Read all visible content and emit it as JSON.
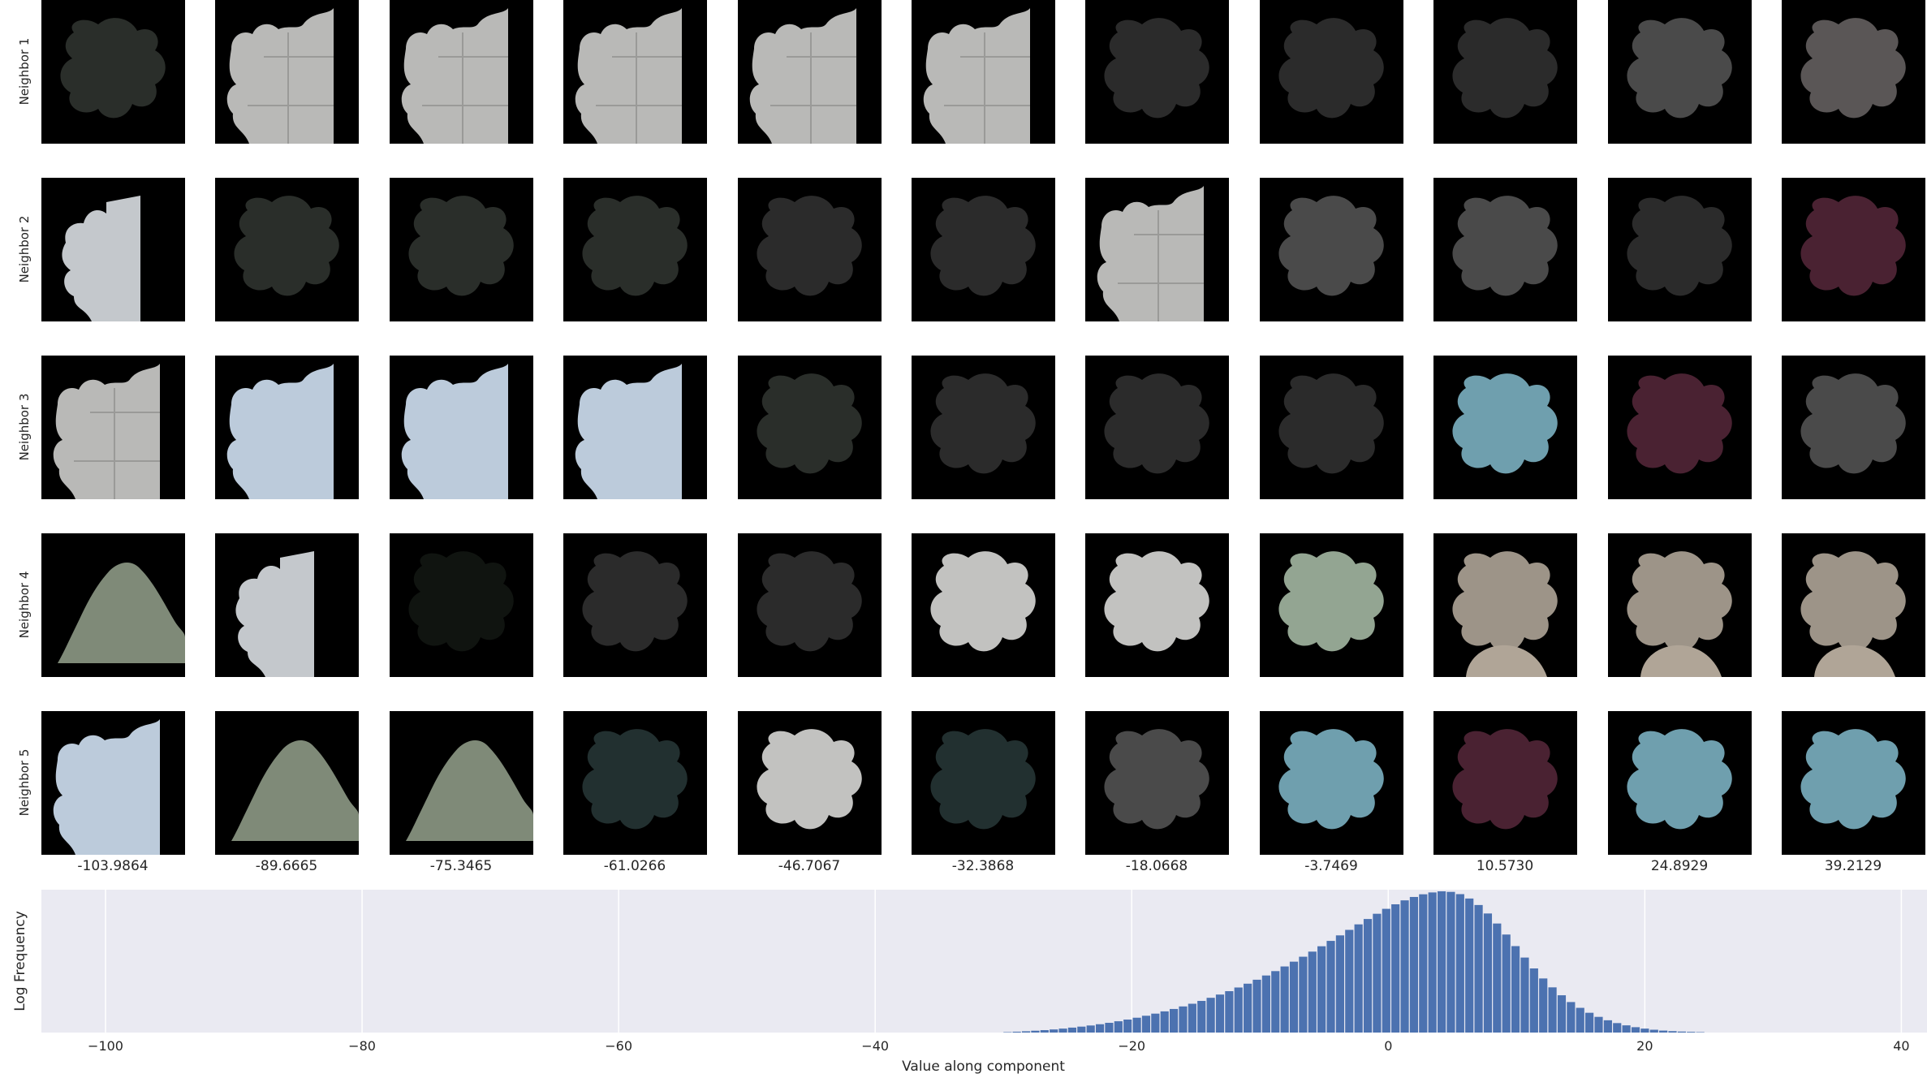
{
  "neighbor_grid": {
    "row_labels": [
      "Neighbor 1",
      "Neighbor 2",
      "Neighbor 3",
      "Neighbor 4",
      "Neighbor 5"
    ],
    "column_values": [
      "-103.9864",
      "-89.6665",
      "-75.3465",
      "-61.0266",
      "-46.7067",
      "-32.3868",
      "-18.0668",
      "-3.7469",
      "10.5730",
      "24.8929",
      "39.2129"
    ],
    "tiles": [
      [
        "dark",
        "gray-tile",
        "gray-tile",
        "gray-tile",
        "gray-tile",
        "gray-tile",
        "dark-blob",
        "dark-blob",
        "dark-blob",
        "gray-blob",
        "gray-blob-mixed"
      ],
      [
        "white-half",
        "dark",
        "dark",
        "dark",
        "dark-blob",
        "dark-blob",
        "gray-tile",
        "gray-blob",
        "gray-blob",
        "dark-blob",
        "maroon"
      ],
      [
        "gray-tile",
        "blue-white",
        "blue-white",
        "blue-white",
        "dark",
        "dark-blob",
        "dark-blob",
        "dark-blob",
        "teal",
        "maroon",
        "gray-blob"
      ],
      [
        "photo-dome",
        "white-half",
        "near-black",
        "dark-blob",
        "dark-blob",
        "white-blob",
        "white-blob",
        "green-blob",
        "beige",
        "beige",
        "beige"
      ],
      [
        "blue-white",
        "photo-dome",
        "photo-dome",
        "dark-green",
        "white-blob",
        "dark-green",
        "gray-blob",
        "teal",
        "maroon",
        "teal",
        "teal"
      ]
    ],
    "tile_colors": {
      "dark": "#2a2e2a",
      "dark-blob": "#2b2b2b",
      "near-black": "#101410",
      "gray-tile": "#b9b9b7",
      "gray-blob": "#4a4a4a",
      "gray-blob-mixed": "#5a5656",
      "white-half": "#c4c8cc",
      "blue-white": "#bccbdb",
      "white-blob": "#c2c2c0",
      "teal": "#6f9fae",
      "maroon": "#4a2232",
      "beige": "#9d9488",
      "green-blob": "#93a592",
      "photo-dome": "#7f8a78",
      "dark-green": "#223030"
    }
  },
  "chart_data": {
    "type": "bar",
    "ylabel": "Log Frequency",
    "xlabel": "Value along component",
    "xlim": [
      -105,
      42
    ],
    "xticks": [
      -100,
      -80,
      -60,
      -40,
      -20,
      0,
      20,
      40
    ],
    "xtick_labels": [
      "−100",
      "−80",
      "−60",
      "−40",
      "−20",
      "0",
      "20",
      "40"
    ],
    "grid": true,
    "background": "#eaeaf2",
    "bar_color": "#4c72b0",
    "bin_width": 0.72,
    "bins_start": -30.0,
    "frequencies": [
      0.3,
      0.6,
      0.9,
      1.3,
      1.7,
      2.2,
      2.8,
      3.5,
      4.2,
      5.0,
      5.9,
      6.9,
      8.0,
      9.2,
      10.5,
      11.9,
      13.4,
      15.0,
      16.7,
      18.5,
      20.4,
      22.4,
      24.6,
      26.9,
      29.3,
      31.9,
      34.6,
      37.4,
      40.4,
      43.5,
      46.8,
      50.2,
      53.7,
      57.3,
      61.1,
      64.9,
      68.8,
      72.7,
      76.6,
      80.4,
      84.1,
      87.6,
      90.8,
      93.6,
      96.0,
      97.9,
      99.2,
      100,
      99.6,
      98.0,
      94.9,
      90.3,
      84.3,
      77.2,
      69.4,
      61.2,
      53.1,
      45.4,
      38.3,
      32.0,
      26.4,
      21.6,
      17.5,
      14.0,
      11.1,
      8.7,
      6.7,
      5.1,
      3.8,
      2.8,
      2.0,
      1.4,
      1.0,
      0.7,
      0.5,
      0.3
    ]
  }
}
